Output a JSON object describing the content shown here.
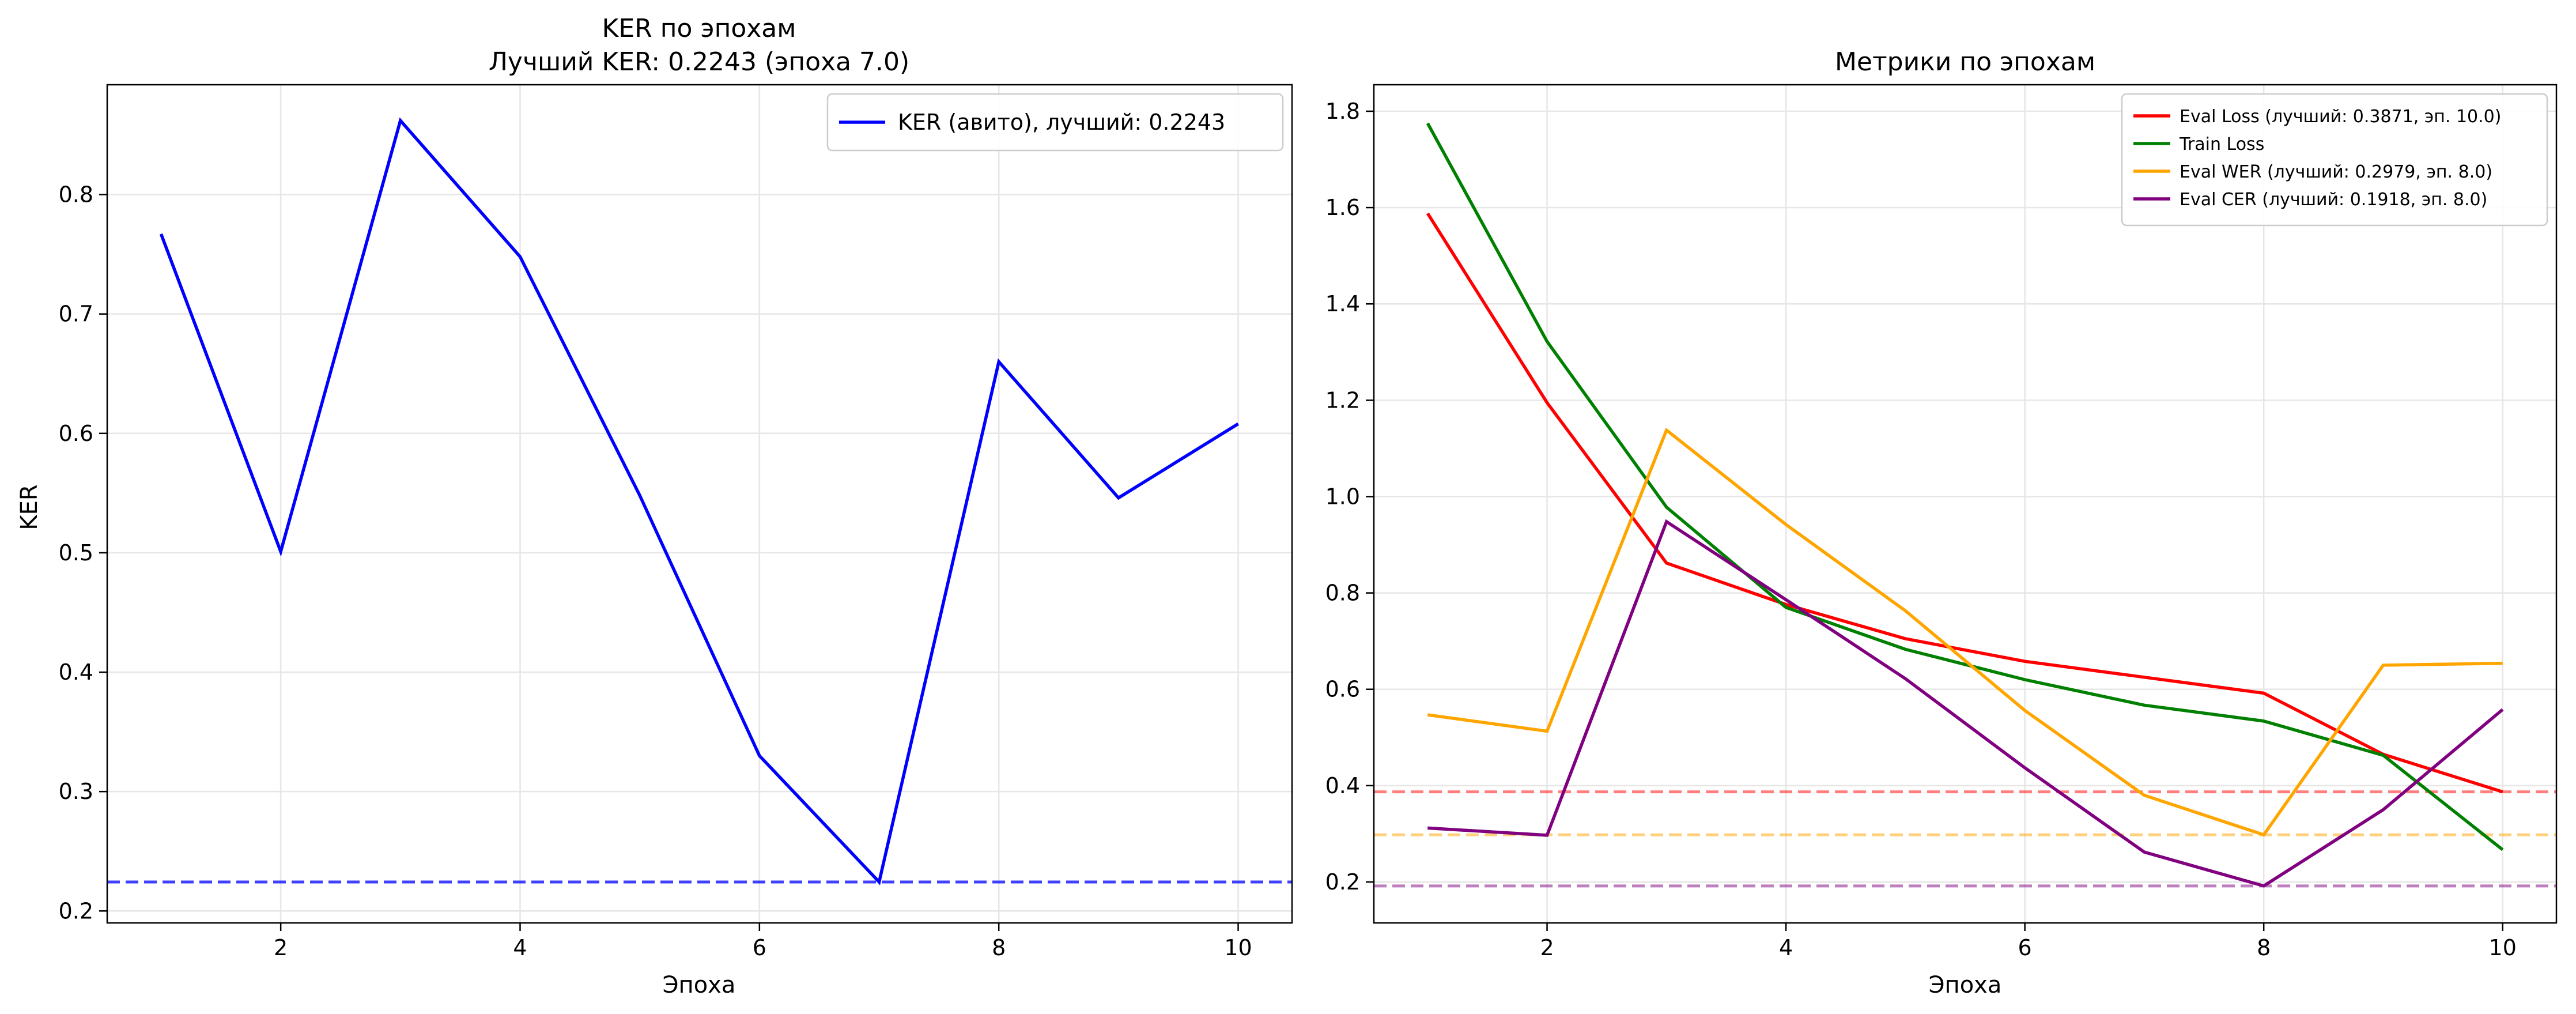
{
  "chart_data": [
    {
      "type": "line",
      "title": "KER по эпохам",
      "subtitle": "Лучший KER: 0.2243 (эпоха 7.0)",
      "xlabel": "Эпоха",
      "ylabel": "KER",
      "xlim": [
        0.55,
        10.45
      ],
      "ylim": [
        0.19,
        0.892
      ],
      "xticks": [
        2,
        4,
        6,
        8,
        10
      ],
      "yticks": [
        0.2,
        0.3,
        0.4,
        0.5,
        0.6,
        0.7,
        0.8
      ],
      "grid": true,
      "legend_position": "top-right",
      "x": [
        1,
        2,
        3,
        4,
        5,
        6,
        7,
        8,
        9,
        10
      ],
      "series": [
        {
          "name": "KER (авито), лучший: 0.2243",
          "color": "#0000ff",
          "values": [
            0.767,
            0.501,
            0.862,
            0.748,
            0.548,
            0.33,
            0.2243,
            0.66,
            0.546,
            0.608
          ]
        }
      ],
      "reference_lines": [
        {
          "y": 0.2243,
          "color": "#0000ff",
          "style": "dashed"
        }
      ]
    },
    {
      "type": "line",
      "title": "Метрики по эпохам",
      "xlabel": "Эпоха",
      "ylabel": "",
      "xlim": [
        0.55,
        10.45
      ],
      "ylim": [
        0.115,
        1.855
      ],
      "xticks": [
        2,
        4,
        6,
        8,
        10
      ],
      "yticks": [
        0.2,
        0.4,
        0.6,
        0.8,
        1.0,
        1.2,
        1.4,
        1.6,
        1.8
      ],
      "grid": true,
      "legend_position": "top-right",
      "x": [
        1,
        2,
        3,
        4,
        5,
        6,
        7,
        8,
        9,
        10
      ],
      "series": [
        {
          "name": "Eval Loss (лучший: 0.3871, эп. 10.0)",
          "color": "#ff0000",
          "values": [
            1.588,
            1.195,
            0.862,
            0.776,
            0.705,
            0.658,
            0.625,
            0.592,
            0.465,
            0.3871
          ]
        },
        {
          "name": "Train Loss",
          "color": "#008000",
          "values": [
            1.775,
            1.322,
            0.978,
            0.77,
            0.683,
            0.62,
            0.567,
            0.534,
            0.463,
            0.267
          ]
        },
        {
          "name": "Eval WER (лучший: 0.2979, эп. 8.0)",
          "color": "#ffa500",
          "values": [
            0.547,
            0.513,
            1.138,
            0.942,
            0.763,
            0.556,
            0.38,
            0.2979,
            0.65,
            0.654
          ]
        },
        {
          "name": "Eval CER (лучший: 0.1918, эп. 8.0)",
          "color": "#800080",
          "values": [
            0.312,
            0.297,
            0.948,
            0.786,
            0.622,
            0.437,
            0.262,
            0.1918,
            0.35,
            0.558
          ]
        }
      ],
      "reference_lines": [
        {
          "y": 0.3871,
          "color": "#ff0000",
          "style": "dashed"
        },
        {
          "y": 0.2979,
          "color": "#ffa500",
          "style": "dashed"
        },
        {
          "y": 0.1918,
          "color": "#800080",
          "style": "dashed"
        }
      ]
    }
  ]
}
